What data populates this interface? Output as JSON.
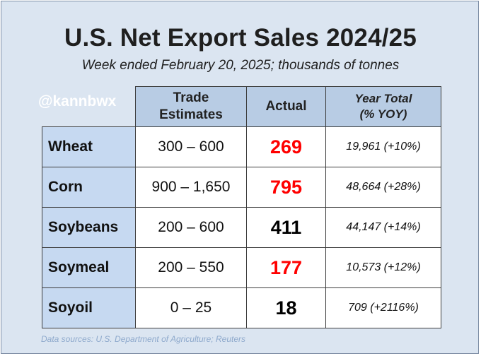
{
  "chart_data": {
    "type": "table",
    "title": "U.S. Net Export Sales 2024/25",
    "subtitle": "Week ended February 20, 2025; thousands of tonnes",
    "watermark": "@kannbwx",
    "source": "Data sources: U.S. Department of Agriculture; Reuters",
    "columns": {
      "trade_line1": "Trade",
      "trade_line2": "Estimates",
      "actual": "Actual",
      "year_line1": "Year Total",
      "year_line2": "(% YOY)"
    },
    "rows": [
      {
        "crop": "Wheat",
        "estimate": "300 – 600",
        "actual": "269",
        "actual_color": "#ff0000",
        "year_total": "19,961  (+10%)"
      },
      {
        "crop": "Corn",
        "estimate": "900 – 1,650",
        "actual": "795",
        "actual_color": "#ff0000",
        "year_total": "48,664  (+28%)"
      },
      {
        "crop": "Soybeans",
        "estimate": "200 – 600",
        "actual": "411",
        "actual_color": "#000000",
        "year_total": "44,147  (+14%)"
      },
      {
        "crop": "Soymeal",
        "estimate": "200 – 550",
        "actual": "177",
        "actual_color": "#ff0000",
        "year_total": "10,573  (+12%)"
      },
      {
        "crop": "Soyoil",
        "estimate": "0 – 25",
        "actual": "18",
        "actual_color": "#000000",
        "year_total": "709  (+2116%)"
      }
    ]
  }
}
